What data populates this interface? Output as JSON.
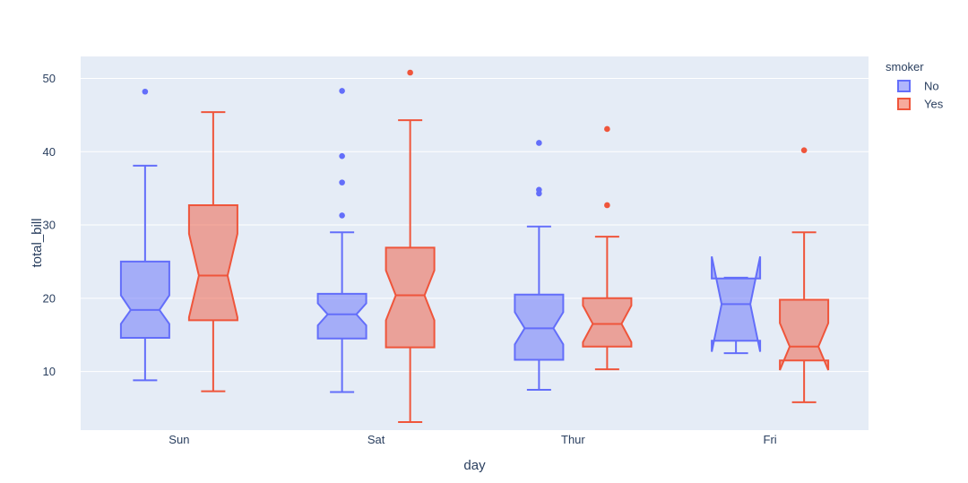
{
  "chart_data": {
    "type": "box",
    "notched": true,
    "xlabel": "day",
    "ylabel": "total_bill",
    "ylim": [
      2,
      53
    ],
    "yticks": [
      10,
      20,
      30,
      40,
      50
    ],
    "categories": [
      "Sun",
      "Sat",
      "Thur",
      "Fri"
    ],
    "grid": true,
    "legend": {
      "title": "smoker",
      "placement": "top-right"
    },
    "series": [
      {
        "name": "No",
        "color": "#636efa",
        "fill": "rgba(99,110,250,0.5)",
        "boxes": [
          {
            "category": "Sun",
            "lowerfence": 8.8,
            "q1": 14.6,
            "median": 18.4,
            "q3": 25.0,
            "upperfence": 38.1,
            "notch_low": 16.5,
            "notch_high": 20.4,
            "outliers": [
              48.2
            ]
          },
          {
            "category": "Sat",
            "lowerfence": 7.2,
            "q1": 14.5,
            "median": 17.8,
            "q3": 20.6,
            "upperfence": 29.0,
            "notch_low": 16.3,
            "notch_high": 19.3,
            "outliers": [
              31.3,
              35.8,
              39.4,
              48.3
            ]
          },
          {
            "category": "Thur",
            "lowerfence": 7.5,
            "q1": 11.6,
            "median": 15.9,
            "q3": 20.5,
            "upperfence": 29.8,
            "notch_low": 13.7,
            "notch_high": 18.1,
            "outliers": [
              34.3,
              34.8,
              41.2
            ]
          },
          {
            "category": "Fri",
            "lowerfence": 12.5,
            "q1": 14.2,
            "median": 19.2,
            "q3": 22.7,
            "upperfence": 22.8,
            "notch_low": 12.7,
            "notch_high": 25.7,
            "outliers": []
          }
        ]
      },
      {
        "name": "Yes",
        "color": "#ef553b",
        "fill": "rgba(239,85,59,0.5)",
        "boxes": [
          {
            "category": "Sun",
            "lowerfence": 7.3,
            "q1": 17.0,
            "median": 23.1,
            "q3": 32.7,
            "upperfence": 45.4,
            "notch_low": 17.4,
            "notch_high": 28.8,
            "outliers": []
          },
          {
            "category": "Sat",
            "lowerfence": 3.1,
            "q1": 13.3,
            "median": 20.4,
            "q3": 26.9,
            "upperfence": 44.3,
            "notch_low": 17.0,
            "notch_high": 23.8,
            "outliers": [
              50.8
            ]
          },
          {
            "category": "Thur",
            "lowerfence": 10.3,
            "q1": 13.4,
            "median": 16.5,
            "q3": 20.0,
            "upperfence": 28.4,
            "notch_low": 14.0,
            "notch_high": 19.0,
            "outliers": [
              32.7,
              43.1
            ]
          },
          {
            "category": "Fri",
            "lowerfence": 5.8,
            "q1": 11.5,
            "median": 13.4,
            "q3": 19.8,
            "upperfence": 29.0,
            "notch_low": 10.2,
            "notch_high": 16.6,
            "outliers": [
              40.2
            ]
          }
        ]
      }
    ]
  }
}
